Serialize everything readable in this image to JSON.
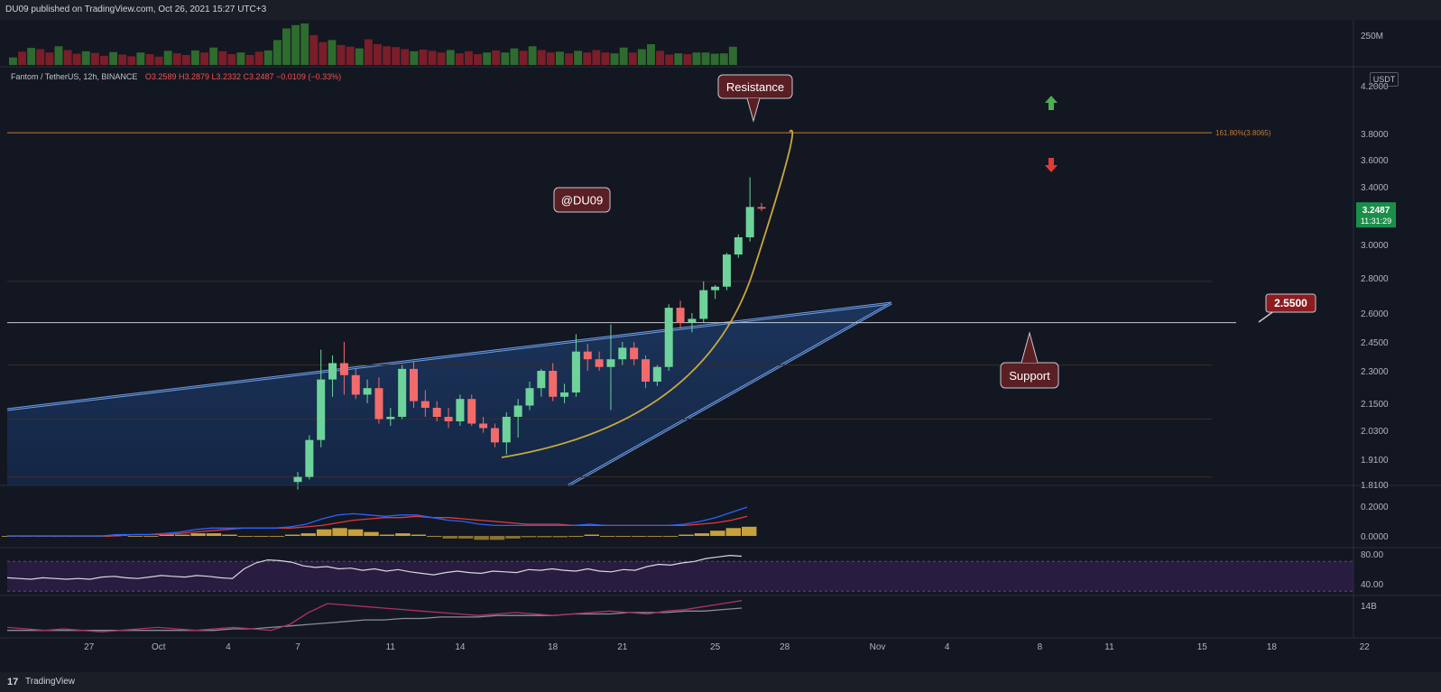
{
  "header": {
    "published": "DU09 published on TradingView.com, Oct 26, 2021 15:27 UTC+3"
  },
  "footer": {
    "logo_glyph": "17",
    "brand": "TradingView"
  },
  "legend": {
    "symbol": "Fantom / TetherUS, 12h, BINANCE",
    "ohlc": "O3.2589 H3.2879 L3.2332 C3.2487 −0.0109 (−0.33%)"
  },
  "price_scale_unit": "USDT",
  "colors": {
    "background": "#131722",
    "up": "#26a69a",
    "down": "#ef5350",
    "fib_line": "#c77b31",
    "channel": "#3b6fc4",
    "curve": "#c8a83d",
    "label_box": "#5a1f24",
    "current_price": "#1b8e4b",
    "macd_line": "#2962ff",
    "signal_line": "#e53935",
    "rsi_line": "#d8d8e0",
    "rsi_band": "#2b1d44"
  },
  "chart_data": {
    "type": "candlestick",
    "timeframe": "12h",
    "x_ticks": [
      "27",
      "Oct",
      "4",
      "7",
      "11",
      "14",
      "18",
      "21",
      "25",
      "28",
      "Nov",
      "4",
      "8",
      "11",
      "15",
      "18",
      "22"
    ],
    "price_ticks": [
      "4.2000",
      "3.8000",
      "3.6000",
      "3.4000",
      "3.0000",
      "2.8000",
      "2.6000",
      "2.4500",
      "2.3000",
      "2.1500",
      "2.0300",
      "1.9100",
      "1.8100"
    ],
    "candles": [
      {
        "d": "Oct 7 00:00",
        "o": 1.82,
        "h": 1.86,
        "l": 1.79,
        "c": 1.84
      },
      {
        "d": "Oct 7 12:00",
        "o": 1.84,
        "h": 2.01,
        "l": 1.83,
        "c": 1.99
      },
      {
        "d": "Oct 8 00:00",
        "o": 1.99,
        "h": 2.41,
        "l": 1.96,
        "c": 2.26
      },
      {
        "d": "Oct 8 12:00",
        "o": 2.26,
        "h": 2.38,
        "l": 2.18,
        "c": 2.34
      },
      {
        "d": "Oct 9 00:00",
        "o": 2.34,
        "h": 2.45,
        "l": 2.19,
        "c": 2.28
      },
      {
        "d": "Oct 9 12:00",
        "o": 2.28,
        "h": 2.31,
        "l": 2.17,
        "c": 2.19
      },
      {
        "d": "Oct 10 00:00",
        "o": 2.19,
        "h": 2.26,
        "l": 2.15,
        "c": 2.22
      },
      {
        "d": "Oct 10 12:00",
        "o": 2.22,
        "h": 2.27,
        "l": 2.06,
        "c": 2.08
      },
      {
        "d": "Oct 11 00:00",
        "o": 2.08,
        "h": 2.13,
        "l": 2.05,
        "c": 2.09
      },
      {
        "d": "Oct 11 12:00",
        "o": 2.09,
        "h": 2.33,
        "l": 2.08,
        "c": 2.31
      },
      {
        "d": "Oct 12 00:00",
        "o": 2.31,
        "h": 2.35,
        "l": 2.13,
        "c": 2.16
      },
      {
        "d": "Oct 12 12:00",
        "o": 2.16,
        "h": 2.21,
        "l": 2.09,
        "c": 2.13
      },
      {
        "d": "Oct 13 00:00",
        "o": 2.13,
        "h": 2.16,
        "l": 2.07,
        "c": 2.09
      },
      {
        "d": "Oct 13 12:00",
        "o": 2.09,
        "h": 2.13,
        "l": 2.04,
        "c": 2.07
      },
      {
        "d": "Oct 14 00:00",
        "o": 2.07,
        "h": 2.19,
        "l": 2.05,
        "c": 2.17
      },
      {
        "d": "Oct 14 12:00",
        "o": 2.17,
        "h": 2.19,
        "l": 2.05,
        "c": 2.06
      },
      {
        "d": "Oct 15 00:00",
        "o": 2.06,
        "h": 2.09,
        "l": 2.02,
        "c": 2.04
      },
      {
        "d": "Oct 15 12:00",
        "o": 2.04,
        "h": 2.06,
        "l": 1.96,
        "c": 1.98
      },
      {
        "d": "Oct 16 00:00",
        "o": 1.98,
        "h": 2.11,
        "l": 1.93,
        "c": 2.09
      },
      {
        "d": "Oct 16 12:00",
        "o": 2.09,
        "h": 2.17,
        "l": 2.0,
        "c": 2.14
      },
      {
        "d": "Oct 17 00:00",
        "o": 2.14,
        "h": 2.25,
        "l": 2.12,
        "c": 2.22
      },
      {
        "d": "Oct 17 12:00",
        "o": 2.22,
        "h": 2.31,
        "l": 2.18,
        "c": 2.3
      },
      {
        "d": "Oct 18 00:00",
        "o": 2.3,
        "h": 2.34,
        "l": 2.16,
        "c": 2.18
      },
      {
        "d": "Oct 18 12:00",
        "o": 2.18,
        "h": 2.24,
        "l": 2.15,
        "c": 2.2
      },
      {
        "d": "Oct 19 00:00",
        "o": 2.2,
        "h": 2.49,
        "l": 2.18,
        "c": 2.4
      },
      {
        "d": "Oct 19 12:00",
        "o": 2.4,
        "h": 2.44,
        "l": 2.3,
        "c": 2.36
      },
      {
        "d": "Oct 20 00:00",
        "o": 2.36,
        "h": 2.4,
        "l": 2.3,
        "c": 2.32
      },
      {
        "d": "Oct 20 12:00",
        "o": 2.32,
        "h": 2.54,
        "l": 2.12,
        "c": 2.36
      },
      {
        "d": "Oct 21 00:00",
        "o": 2.36,
        "h": 2.45,
        "l": 2.33,
        "c": 2.42
      },
      {
        "d": "Oct 21 12:00",
        "o": 2.42,
        "h": 2.45,
        "l": 2.33,
        "c": 2.36
      },
      {
        "d": "Oct 22 00:00",
        "o": 2.36,
        "h": 2.38,
        "l": 2.22,
        "c": 2.25
      },
      {
        "d": "Oct 22 12:00",
        "o": 2.25,
        "h": 2.33,
        "l": 2.23,
        "c": 2.32
      },
      {
        "d": "Oct 23 00:00",
        "o": 2.32,
        "h": 2.65,
        "l": 2.3,
        "c": 2.63
      },
      {
        "d": "Oct 23 12:00",
        "o": 2.63,
        "h": 2.67,
        "l": 2.52,
        "c": 2.55
      },
      {
        "d": "Oct 24 00:00",
        "o": 2.55,
        "h": 2.6,
        "l": 2.5,
        "c": 2.57
      },
      {
        "d": "Oct 24 12:00",
        "o": 2.57,
        "h": 2.78,
        "l": 2.55,
        "c": 2.73
      },
      {
        "d": "Oct 25 00:00",
        "o": 2.73,
        "h": 2.76,
        "l": 2.68,
        "c": 2.75
      },
      {
        "d": "Oct 25 12:00",
        "o": 2.75,
        "h": 2.95,
        "l": 2.73,
        "c": 2.94
      },
      {
        "d": "Oct 26 00:00",
        "o": 2.94,
        "h": 3.07,
        "l": 2.92,
        "c": 3.05
      },
      {
        "d": "Oct 26 12:00",
        "o": 3.05,
        "h": 3.47,
        "l": 3.02,
        "c": 3.26
      },
      {
        "d": "Oct 27 00:00",
        "o": 3.2589,
        "h": 3.2879,
        "l": 3.2332,
        "c": 3.2487
      }
    ],
    "current_price": {
      "value": "3.2487",
      "countdown": "11:31:29"
    },
    "levels": [
      {
        "label": "161.80%(3.8065)",
        "price": 3.8065,
        "kind": "fib-extension"
      },
      {
        "label": "2.5500",
        "price": 2.55,
        "kind": "support"
      }
    ],
    "annotations": {
      "resistance": "Resistance",
      "support": "Support",
      "watermark": "@DU09",
      "up_arrow": "arrow-up-icon",
      "down_arrow": "arrow-down-icon"
    },
    "volume": {
      "scale_label": "250M",
      "bars": [
        {
          "v": 0.18,
          "up": true
        },
        {
          "v": 0.32,
          "up": false
        },
        {
          "v": 0.41,
          "up": true
        },
        {
          "v": 0.38,
          "up": false
        },
        {
          "v": 0.3,
          "up": false
        },
        {
          "v": 0.45,
          "up": true
        },
        {
          "v": 0.36,
          "up": false
        },
        {
          "v": 0.27,
          "up": false
        },
        {
          "v": 0.33,
          "up": true
        },
        {
          "v": 0.29,
          "up": false
        },
        {
          "v": 0.22,
          "up": false
        },
        {
          "v": 0.31,
          "up": true
        },
        {
          "v": 0.25,
          "up": false
        },
        {
          "v": 0.21,
          "up": false
        },
        {
          "v": 0.3,
          "up": true
        },
        {
          "v": 0.26,
          "up": false
        },
        {
          "v": 0.2,
          "up": false
        },
        {
          "v": 0.34,
          "up": true
        },
        {
          "v": 0.28,
          "up": false
        },
        {
          "v": 0.24,
          "up": false
        },
        {
          "v": 0.35,
          "up": true
        },
        {
          "v": 0.3,
          "up": false
        },
        {
          "v": 0.42,
          "up": true
        },
        {
          "v": 0.33,
          "up": false
        },
        {
          "v": 0.26,
          "up": false
        },
        {
          "v": 0.3,
          "up": true
        },
        {
          "v": 0.24,
          "up": false
        },
        {
          "v": 0.32,
          "up": false
        },
        {
          "v": 0.35,
          "up": true
        },
        {
          "v": 0.6,
          "up": true
        },
        {
          "v": 0.88,
          "up": true
        },
        {
          "v": 0.96,
          "up": true
        },
        {
          "v": 1.0,
          "up": true
        },
        {
          "v": 0.72,
          "up": false
        },
        {
          "v": 0.55,
          "up": false
        },
        {
          "v": 0.6,
          "up": true
        },
        {
          "v": 0.48,
          "up": false
        },
        {
          "v": 0.44,
          "up": false
        },
        {
          "v": 0.4,
          "up": true
        },
        {
          "v": 0.62,
          "up": false
        },
        {
          "v": 0.5,
          "up": false
        },
        {
          "v": 0.45,
          "up": false
        },
        {
          "v": 0.43,
          "up": false
        },
        {
          "v": 0.38,
          "up": false
        },
        {
          "v": 0.33,
          "up": true
        },
        {
          "v": 0.37,
          "up": false
        },
        {
          "v": 0.34,
          "up": false
        },
        {
          "v": 0.3,
          "up": false
        },
        {
          "v": 0.36,
          "up": true
        },
        {
          "v": 0.28,
          "up": false
        },
        {
          "v": 0.33,
          "up": false
        },
        {
          "v": 0.26,
          "up": false
        },
        {
          "v": 0.3,
          "up": true
        },
        {
          "v": 0.35,
          "up": false
        },
        {
          "v": 0.3,
          "up": true
        },
        {
          "v": 0.4,
          "up": true
        },
        {
          "v": 0.34,
          "up": false
        },
        {
          "v": 0.45,
          "up": true
        },
        {
          "v": 0.36,
          "up": false
        },
        {
          "v": 0.3,
          "up": false
        },
        {
          "v": 0.32,
          "up": true
        },
        {
          "v": 0.28,
          "up": false
        },
        {
          "v": 0.34,
          "up": true
        },
        {
          "v": 0.3,
          "up": false
        },
        {
          "v": 0.36,
          "up": false
        },
        {
          "v": 0.3,
          "up": false
        },
        {
          "v": 0.28,
          "up": true
        },
        {
          "v": 0.42,
          "up": true
        },
        {
          "v": 0.3,
          "up": false
        },
        {
          "v": 0.38,
          "up": true
        },
        {
          "v": 0.5,
          "up": true
        },
        {
          "v": 0.34,
          "up": false
        },
        {
          "v": 0.25,
          "up": false
        },
        {
          "v": 0.28,
          "up": true
        },
        {
          "v": 0.26,
          "up": false
        },
        {
          "v": 0.3,
          "up": true
        },
        {
          "v": 0.3,
          "up": true
        },
        {
          "v": 0.27,
          "up": true
        },
        {
          "v": 0.28,
          "up": true
        },
        {
          "v": 0.44,
          "up": true
        }
      ]
    },
    "macd": {
      "ticks": [
        "0.2000",
        "0.0000"
      ],
      "macd": [
        0.0,
        0.0,
        0.0,
        0.0,
        0.0,
        0.0,
        0.0,
        0.01,
        0.01,
        0.01,
        0.02,
        0.03,
        0.05,
        0.06,
        0.06,
        0.06,
        0.06,
        0.06,
        0.07,
        0.09,
        0.13,
        0.16,
        0.17,
        0.16,
        0.15,
        0.16,
        0.16,
        0.14,
        0.12,
        0.11,
        0.09,
        0.08,
        0.08,
        0.08,
        0.08,
        0.08,
        0.08,
        0.09,
        0.08,
        0.08,
        0.08,
        0.08,
        0.08,
        0.09,
        0.11,
        0.14,
        0.18,
        0.22
      ],
      "signal": [
        0.0,
        0.0,
        0.0,
        0.0,
        0.0,
        0.0,
        0.0,
        0.0,
        0.01,
        0.01,
        0.01,
        0.02,
        0.03,
        0.04,
        0.05,
        0.06,
        0.06,
        0.06,
        0.06,
        0.07,
        0.08,
        0.1,
        0.12,
        0.13,
        0.14,
        0.14,
        0.15,
        0.14,
        0.14,
        0.13,
        0.12,
        0.11,
        0.1,
        0.09,
        0.09,
        0.09,
        0.08,
        0.08,
        0.08,
        0.08,
        0.08,
        0.08,
        0.08,
        0.08,
        0.09,
        0.1,
        0.12,
        0.15
      ],
      "hist": [
        0.0,
        0.0,
        0.0,
        0.0,
        0.0,
        0.0,
        0.0,
        0.01,
        0.0,
        0.0,
        0.01,
        0.01,
        0.02,
        0.02,
        0.01,
        0.0,
        0.0,
        0.0,
        0.01,
        0.02,
        0.05,
        0.06,
        0.05,
        0.03,
        0.01,
        0.02,
        0.01,
        0.0,
        -0.02,
        -0.02,
        -0.03,
        -0.03,
        -0.02,
        -0.01,
        -0.01,
        -0.01,
        0.0,
        0.01,
        0.0,
        0.0,
        0.0,
        0.0,
        0.0,
        0.01,
        0.02,
        0.04,
        0.06,
        0.07
      ]
    },
    "rsi": {
      "ticks": [
        "80.00",
        "40.00"
      ],
      "values": [
        48,
        47,
        46,
        48,
        47,
        46,
        47,
        46,
        49,
        50,
        48,
        47,
        49,
        51,
        50,
        49,
        51,
        50,
        48,
        47,
        60,
        68,
        72,
        71,
        69,
        64,
        62,
        63,
        60,
        61,
        58,
        60,
        57,
        59,
        56,
        54,
        52,
        55,
        57,
        55,
        54,
        57,
        56,
        55,
        59,
        58,
        60,
        58,
        57,
        60,
        57,
        56,
        59,
        58,
        63,
        66,
        65,
        68,
        70,
        74,
        76,
        78,
        77
      ]
    },
    "obv": {
      "tick": "14B",
      "pink": [
        22,
        21,
        20,
        21,
        20,
        19,
        20,
        21,
        22,
        21,
        20,
        21,
        22,
        21,
        20,
        24,
        32,
        38,
        37,
        36,
        35,
        34,
        33,
        32,
        31,
        30,
        31,
        32,
        31,
        30,
        31,
        32,
        33,
        32,
        31,
        33,
        34,
        36,
        38,
        40
      ],
      "gray": [
        20,
        20,
        20,
        20,
        20,
        20,
        20,
        20,
        20,
        20,
        20,
        20,
        21,
        21,
        22,
        23,
        24,
        25,
        26,
        27,
        27,
        28,
        28,
        29,
        29,
        29,
        30,
        30,
        30,
        30,
        31,
        31,
        31,
        32,
        32,
        32,
        33,
        33,
        34,
        35
      ]
    }
  }
}
